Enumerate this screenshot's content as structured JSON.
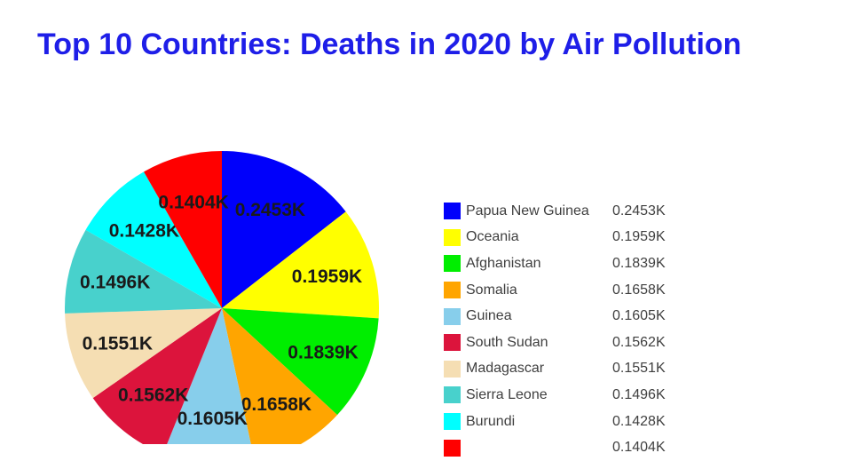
{
  "page": {
    "background_color": "#FFFFFF"
  },
  "title": {
    "text": "Top 10 Countries: Deaths in 2020 by Air Pollution",
    "color": "#1E1EE8"
  },
  "chart_data": {
    "type": "pie",
    "title": "Top 10 Countries: Deaths in 2020 by Air Pollution",
    "value_unit": "K",
    "legend_position": "right",
    "slice_label_color": "#1A1A1A",
    "legend_text_color": "#3F3F3F",
    "slices": [
      {
        "name": "Papua New Guinea",
        "value": 0.2453,
        "display": "0.2453K",
        "color": "#0000FB"
      },
      {
        "name": "Oceania",
        "value": 0.1959,
        "display": "0.1959K",
        "color": "#FFFF00"
      },
      {
        "name": "Afghanistan",
        "value": 0.1839,
        "display": "0.1839K",
        "color": "#00EE00"
      },
      {
        "name": "Somalia",
        "value": 0.1658,
        "display": "0.1658K",
        "color": "#FFA500"
      },
      {
        "name": "Guinea",
        "value": 0.1605,
        "display": "0.1605K",
        "color": "#87CEEB"
      },
      {
        "name": "South Sudan",
        "value": 0.1562,
        "display": "0.1562K",
        "color": "#DC143C"
      },
      {
        "name": "Madagascar",
        "value": 0.1551,
        "display": "0.1551K",
        "color": "#F5DEB3"
      },
      {
        "name": "Sierra Leone",
        "value": 0.1496,
        "display": "0.1496K",
        "color": "#48D1CC"
      },
      {
        "name": "Burundi",
        "value": 0.1428,
        "display": "0.1428K",
        "color": "#00FFFF"
      },
      {
        "name": "",
        "value": 0.1404,
        "display": "0.1404K",
        "color": "#FF0000"
      }
    ]
  }
}
